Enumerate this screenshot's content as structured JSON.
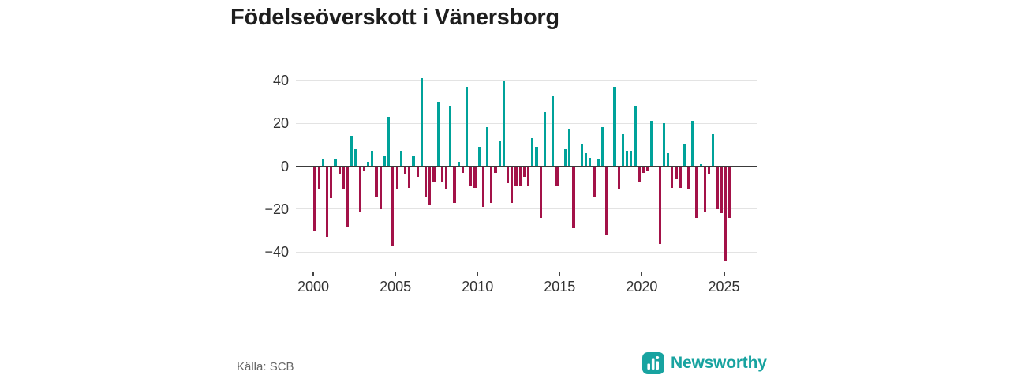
{
  "title": "Födelseöverskott i Vänersborg",
  "footer": {
    "source_label": "Källa: SCB",
    "brand": "Newsworthy"
  },
  "colors": {
    "positive": "#00a29a",
    "negative": "#a31248",
    "axis": "#3a3a3a",
    "grid": "#e3e3e3",
    "brand": "#18a3a0"
  },
  "chart_data": {
    "type": "bar",
    "title": "Födelseöverskott i Vänersborg",
    "frequency": "quarterly",
    "x_start": "2000-Q1",
    "x_end": "2025-Q2",
    "x_tick_labels": [
      "2000",
      "2005",
      "2010",
      "2015",
      "2020",
      "2025"
    ],
    "y_ticks": [
      40,
      20,
      0,
      -20,
      -40
    ],
    "ylim": [
      -50,
      46
    ],
    "grid": true,
    "legend": "none",
    "values": [
      -30,
      -11,
      3,
      -33,
      -15,
      3,
      -4,
      -11,
      -28,
      14,
      8,
      -21,
      -2,
      2,
      7,
      -14,
      -20,
      5,
      23,
      -37,
      -11,
      7,
      -4,
      -10,
      5,
      -5,
      41,
      -14,
      -18,
      -7,
      30,
      -7,
      -11,
      28,
      -17,
      2,
      -3,
      37,
      -9,
      -10,
      9,
      -19,
      18,
      -17,
      -3,
      12,
      40,
      -8,
      -17,
      -9,
      -9,
      -5,
      -9,
      13,
      9,
      -24,
      25,
      0,
      33,
      -9,
      0,
      8,
      17,
      -29,
      0,
      10,
      6,
      4,
      -14,
      3,
      18,
      -32,
      0,
      37,
      -11,
      15,
      7,
      7,
      28,
      -7,
      -3,
      -2,
      21,
      0,
      -36,
      20,
      6,
      -10,
      -6,
      -10,
      10,
      -11,
      21,
      -24,
      1,
      -21,
      -4,
      15,
      -20,
      -22,
      -44,
      -24
    ]
  }
}
